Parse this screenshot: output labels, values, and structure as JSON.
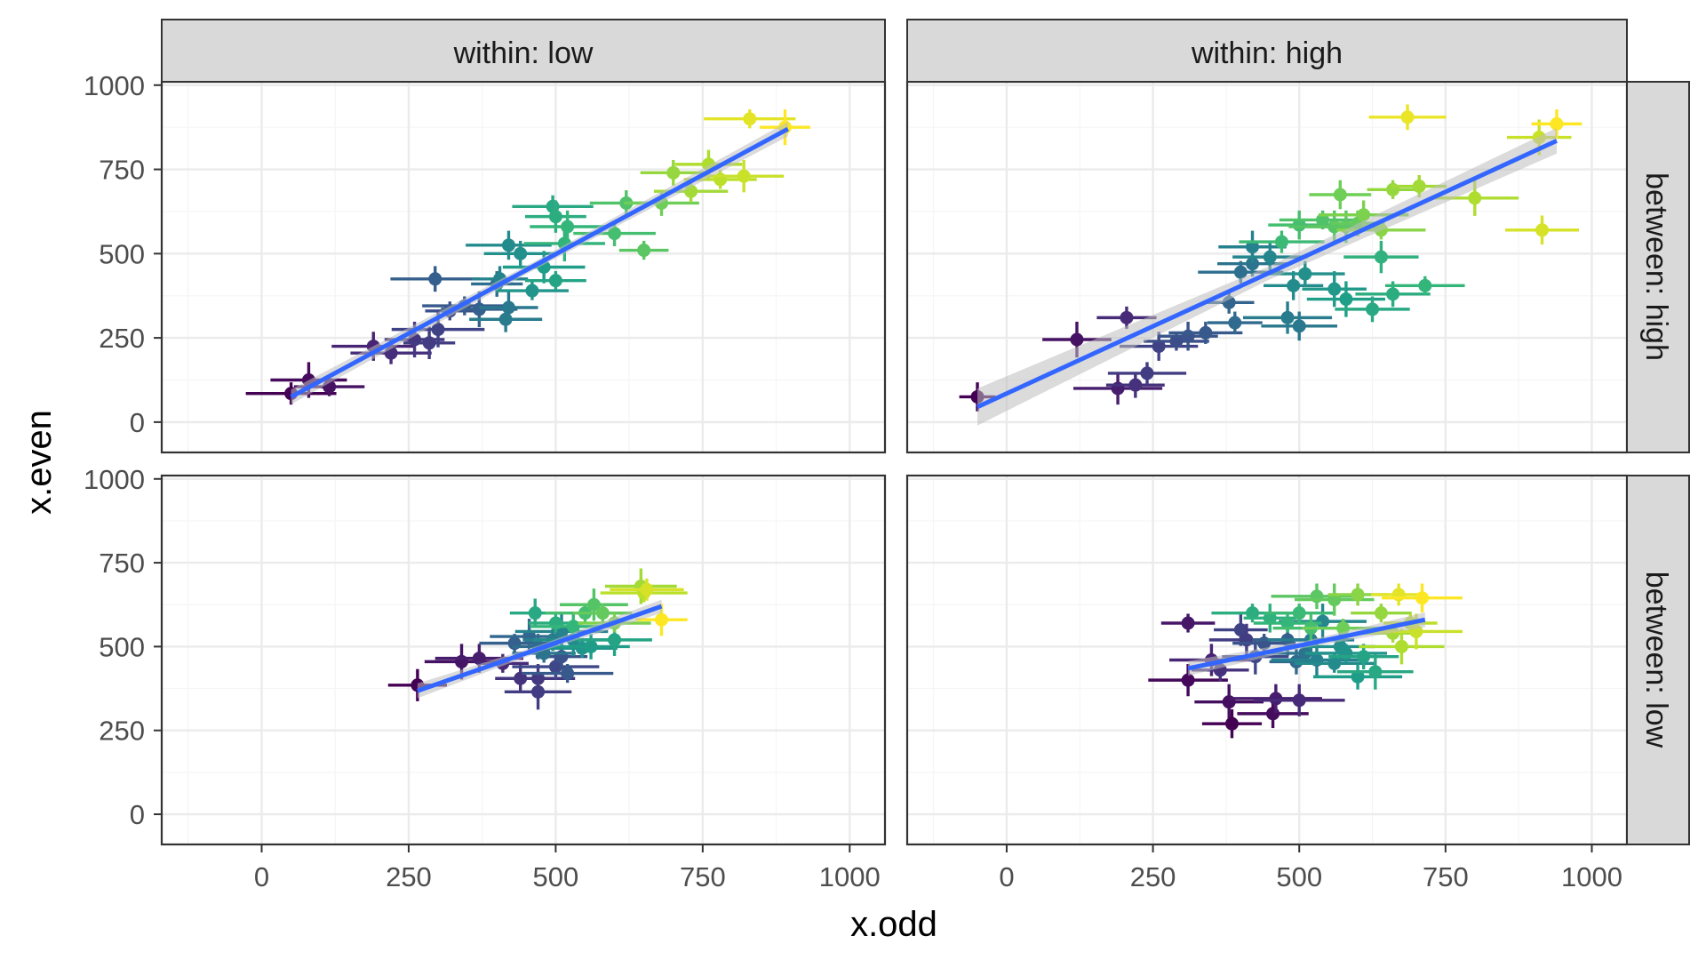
{
  "chart_data": {
    "type": "scatter",
    "xlabel": "x.odd",
    "ylabel": "x.even",
    "xlim": [
      -170,
      1060
    ],
    "ylim": [
      -90,
      1010
    ],
    "x_ticks": [
      0,
      250,
      500,
      750,
      1000
    ],
    "y_ticks": [
      0,
      250,
      500,
      750,
      1000
    ],
    "x_tick_labels": [
      "0",
      "250",
      "500",
      "750",
      "1000"
    ],
    "y_tick_labels": [
      "0",
      "250",
      "500",
      "750",
      "1000"
    ],
    "grid": true,
    "legend": "none",
    "colors": {
      "trend_line": "#3366FF",
      "confidence_band": "#BEBEBE",
      "strip_fill": "#D9D9D9",
      "panel_border": "#333333",
      "grid_major": "#EBEBEB",
      "palette": [
        "#FDE725",
        "#B5DE2B",
        "#6ECE58",
        "#35B779",
        "#1F9E89",
        "#26828E",
        "#31688E",
        "#3E4989",
        "#482878",
        "#440154"
      ]
    },
    "column_strips": [
      "within: low",
      "within: high"
    ],
    "row_strips": [
      "between: high",
      "between: low"
    ],
    "panels": [
      {
        "row": 0,
        "col": 0,
        "points": [
          [
            50,
            85,
            0.0
          ],
          [
            80,
            125,
            0.03
          ],
          [
            115,
            105,
            0.05
          ],
          [
            190,
            225,
            0.1
          ],
          [
            220,
            205,
            0.13
          ],
          [
            260,
            245,
            0.16
          ],
          [
            285,
            235,
            0.18
          ],
          [
            300,
            275,
            0.2
          ],
          [
            295,
            425,
            0.3
          ],
          [
            320,
            330,
            0.24
          ],
          [
            345,
            345,
            0.28
          ],
          [
            370,
            335,
            0.3
          ],
          [
            400,
            410,
            0.36
          ],
          [
            420,
            340,
            0.4
          ],
          [
            415,
            305,
            0.42
          ],
          [
            405,
            425,
            0.45
          ],
          [
            420,
            525,
            0.48
          ],
          [
            440,
            500,
            0.5
          ],
          [
            460,
            390,
            0.52
          ],
          [
            480,
            460,
            0.55
          ],
          [
            495,
            640,
            0.6
          ],
          [
            500,
            610,
            0.62
          ],
          [
            500,
            420,
            0.58
          ],
          [
            515,
            530,
            0.65
          ],
          [
            520,
            580,
            0.66
          ],
          [
            600,
            560,
            0.7
          ],
          [
            620,
            650,
            0.72
          ],
          [
            650,
            510,
            0.74
          ],
          [
            680,
            650,
            0.78
          ],
          [
            700,
            740,
            0.84
          ],
          [
            730,
            685,
            0.86
          ],
          [
            760,
            765,
            0.88
          ],
          [
            780,
            720,
            0.9
          ],
          [
            820,
            730,
            0.92
          ],
          [
            830,
            900,
            0.96
          ],
          [
            890,
            875,
            1.0
          ]
        ],
        "trend": {
          "x": [
            50,
            895
          ],
          "y": [
            75,
            870
          ]
        },
        "band_half_width": [
          22,
          12,
          22
        ]
      },
      {
        "row": 0,
        "col": 1,
        "points": [
          [
            -50,
            75,
            0.0
          ],
          [
            120,
            245,
            0.05
          ],
          [
            190,
            100,
            0.08
          ],
          [
            205,
            310,
            0.12
          ],
          [
            220,
            110,
            0.14
          ],
          [
            240,
            145,
            0.18
          ],
          [
            260,
            225,
            0.2
          ],
          [
            290,
            240,
            0.24
          ],
          [
            310,
            255,
            0.26
          ],
          [
            340,
            265,
            0.28
          ],
          [
            380,
            355,
            0.32
          ],
          [
            390,
            295,
            0.34
          ],
          [
            400,
            445,
            0.36
          ],
          [
            420,
            470,
            0.38
          ],
          [
            500,
            285,
            0.4
          ],
          [
            480,
            310,
            0.42
          ],
          [
            420,
            520,
            0.44
          ],
          [
            450,
            490,
            0.46
          ],
          [
            490,
            405,
            0.48
          ],
          [
            510,
            440,
            0.5
          ],
          [
            560,
            395,
            0.53
          ],
          [
            580,
            365,
            0.56
          ],
          [
            625,
            335,
            0.6
          ],
          [
            660,
            380,
            0.62
          ],
          [
            640,
            490,
            0.64
          ],
          [
            715,
            405,
            0.66
          ],
          [
            470,
            535,
            0.68
          ],
          [
            500,
            585,
            0.7
          ],
          [
            540,
            600,
            0.72
          ],
          [
            560,
            580,
            0.73
          ],
          [
            580,
            580,
            0.74
          ],
          [
            600,
            590,
            0.76
          ],
          [
            570,
            675,
            0.78
          ],
          [
            610,
            615,
            0.8
          ],
          [
            640,
            570,
            0.82
          ],
          [
            660,
            690,
            0.84
          ],
          [
            705,
            700,
            0.86
          ],
          [
            800,
            665,
            0.88
          ],
          [
            910,
            845,
            0.92
          ],
          [
            915,
            570,
            0.94
          ],
          [
            685,
            905,
            0.97
          ],
          [
            940,
            885,
            1.0
          ]
        ],
        "trend": {
          "x": [
            -50,
            940
          ],
          "y": [
            45,
            835
          ]
        },
        "band_half_width": [
          55,
          20,
          38
        ]
      },
      {
        "row": 1,
        "col": 0,
        "points": [
          [
            265,
            385,
            0.0
          ],
          [
            340,
            455,
            0.05
          ],
          [
            370,
            465,
            0.08
          ],
          [
            410,
            450,
            0.12
          ],
          [
            440,
            405,
            0.14
          ],
          [
            470,
            405,
            0.16
          ],
          [
            470,
            365,
            0.18
          ],
          [
            500,
            440,
            0.22
          ],
          [
            510,
            470,
            0.26
          ],
          [
            520,
            420,
            0.28
          ],
          [
            430,
            510,
            0.3
          ],
          [
            455,
            530,
            0.33
          ],
          [
            470,
            500,
            0.35
          ],
          [
            480,
            480,
            0.38
          ],
          [
            495,
            520,
            0.42
          ],
          [
            510,
            545,
            0.45
          ],
          [
            530,
            520,
            0.48
          ],
          [
            545,
            495,
            0.52
          ],
          [
            560,
            500,
            0.55
          ],
          [
            600,
            520,
            0.58
          ],
          [
            465,
            600,
            0.6
          ],
          [
            500,
            570,
            0.62
          ],
          [
            530,
            560,
            0.66
          ],
          [
            550,
            600,
            0.7
          ],
          [
            565,
            625,
            0.73
          ],
          [
            580,
            600,
            0.76
          ],
          [
            600,
            570,
            0.8
          ],
          [
            645,
            680,
            0.86
          ],
          [
            650,
            660,
            0.9
          ],
          [
            655,
            670,
            0.94
          ],
          [
            680,
            580,
            1.0
          ]
        ],
        "trend": {
          "x": [
            265,
            680
          ],
          "y": [
            368,
            620
          ]
        },
        "band_half_width": [
          22,
          10,
          20
        ]
      },
      {
        "row": 1,
        "col": 1,
        "points": [
          [
            310,
            570,
            0.06
          ],
          [
            310,
            400,
            0.02
          ],
          [
            350,
            460,
            0.1
          ],
          [
            365,
            430,
            0.14
          ],
          [
            380,
            335,
            0.04
          ],
          [
            385,
            270,
            0.0
          ],
          [
            400,
            550,
            0.2
          ],
          [
            410,
            520,
            0.18
          ],
          [
            425,
            470,
            0.22
          ],
          [
            440,
            510,
            0.26
          ],
          [
            455,
            300,
            0.03
          ],
          [
            460,
            345,
            0.08
          ],
          [
            480,
            520,
            0.3
          ],
          [
            495,
            455,
            0.34
          ],
          [
            500,
            340,
            0.12
          ],
          [
            510,
            480,
            0.38
          ],
          [
            520,
            520,
            0.42
          ],
          [
            530,
            460,
            0.44
          ],
          [
            540,
            575,
            0.46
          ],
          [
            560,
            450,
            0.48
          ],
          [
            570,
            500,
            0.5
          ],
          [
            580,
            480,
            0.52
          ],
          [
            600,
            410,
            0.55
          ],
          [
            610,
            470,
            0.58
          ],
          [
            630,
            425,
            0.6
          ],
          [
            420,
            600,
            0.62
          ],
          [
            450,
            585,
            0.64
          ],
          [
            480,
            570,
            0.66
          ],
          [
            500,
            600,
            0.68
          ],
          [
            520,
            555,
            0.7
          ],
          [
            530,
            650,
            0.74
          ],
          [
            560,
            640,
            0.76
          ],
          [
            575,
            555,
            0.78
          ],
          [
            600,
            655,
            0.82
          ],
          [
            640,
            600,
            0.84
          ],
          [
            660,
            540,
            0.86
          ],
          [
            675,
            500,
            0.88
          ],
          [
            690,
            570,
            0.9
          ],
          [
            700,
            545,
            0.92
          ],
          [
            670,
            655,
            0.96
          ],
          [
            710,
            645,
            1.0
          ]
        ],
        "trend": {
          "x": [
            310,
            715
          ],
          "y": [
            435,
            580
          ]
        },
        "band_half_width": [
          22,
          10,
          22
        ]
      }
    ]
  }
}
